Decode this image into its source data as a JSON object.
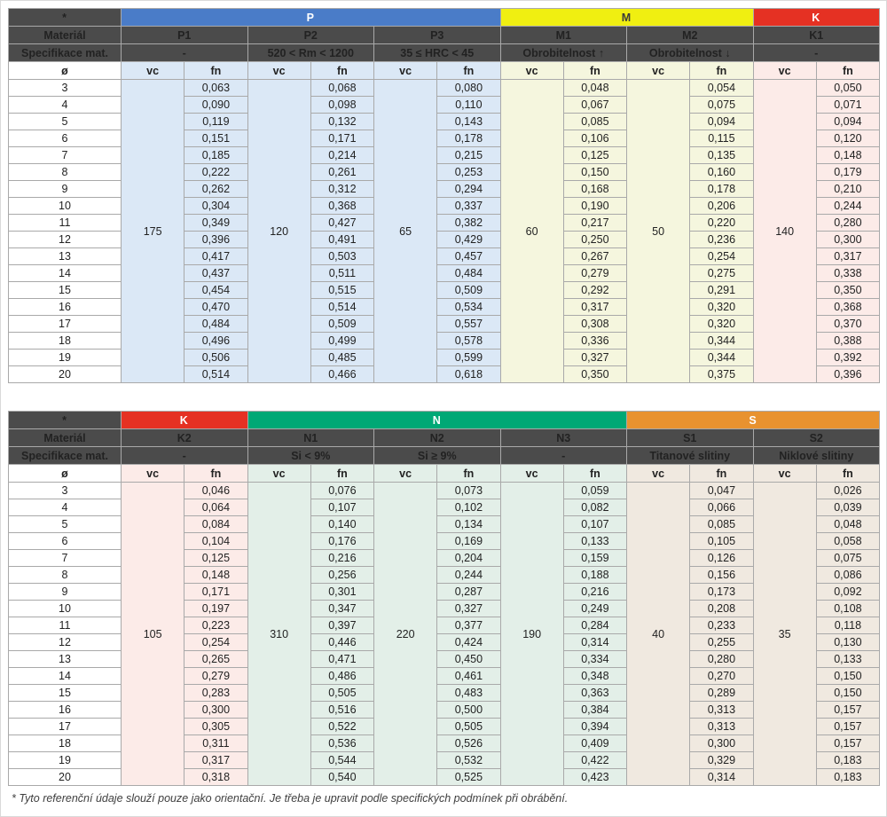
{
  "labels": {
    "corner": "*",
    "material_row": "Materiál",
    "spec_row": "Specifikace mat.",
    "diameter": "ø",
    "vc": "vc",
    "fn": "fn"
  },
  "colors": {
    "header_dark": "#4b4b4b",
    "border_inner": "#a9a9a9",
    "border_outer": "#6f6f6f",
    "p_blue": "#4a7cc8",
    "m_yellow": "#f0ef11",
    "k_red": "#e53123",
    "n_green": "#00a875",
    "s_orange": "#e8922f"
  },
  "diameters": [
    "3",
    "4",
    "5",
    "6",
    "7",
    "8",
    "9",
    "10",
    "11",
    "12",
    "13",
    "14",
    "15",
    "16",
    "17",
    "18",
    "19",
    "20"
  ],
  "tables": [
    {
      "name": "cutting-data-table-p-m-k",
      "groups": [
        {
          "label": "P",
          "color": "#4a7cc8",
          "text_color": "#ffffff",
          "tint": "#dbe8f6",
          "materials": [
            {
              "name": "P1",
              "spec": "-",
              "vc": "175",
              "fn": [
                "0,063",
                "0,090",
                "0,119",
                "0,151",
                "0,185",
                "0,222",
                "0,262",
                "0,304",
                "0,349",
                "0,396",
                "0,417",
                "0,437",
                "0,454",
                "0,470",
                "0,484",
                "0,496",
                "0,506",
                "0,514"
              ]
            },
            {
              "name": "P2",
              "spec": "520 < Rm < 1200",
              "vc": "120",
              "fn": [
                "0,068",
                "0,098",
                "0,132",
                "0,171",
                "0,214",
                "0,261",
                "0,312",
                "0,368",
                "0,427",
                "0,491",
                "0,503",
                "0,511",
                "0,515",
                "0,514",
                "0,509",
                "0,499",
                "0,485",
                "0,466"
              ]
            },
            {
              "name": "P3",
              "spec": "35 ≤ HRC < 45",
              "vc": "65",
              "fn": [
                "0,080",
                "0,110",
                "0,143",
                "0,178",
                "0,215",
                "0,253",
                "0,294",
                "0,337",
                "0,382",
                "0,429",
                "0,457",
                "0,484",
                "0,509",
                "0,534",
                "0,557",
                "0,578",
                "0,599",
                "0,618"
              ]
            }
          ]
        },
        {
          "label": "M",
          "color": "#f0ef11",
          "text_color": "#3b3b3b",
          "tint": "#f5f6de",
          "materials": [
            {
              "name": "M1",
              "spec": "Obrobitelnost ↑",
              "vc": "60",
              "fn": [
                "0,048",
                "0,067",
                "0,085",
                "0,106",
                "0,125",
                "0,150",
                "0,168",
                "0,190",
                "0,217",
                "0,250",
                "0,267",
                "0,279",
                "0,292",
                "0,317",
                "0,308",
                "0,336",
                "0,327",
                "0,350"
              ]
            },
            {
              "name": "M2",
              "spec": "Obrobitelnost ↓",
              "vc": "50",
              "fn": [
                "0,054",
                "0,075",
                "0,094",
                "0,115",
                "0,135",
                "0,160",
                "0,178",
                "0,206",
                "0,220",
                "0,236",
                "0,254",
                "0,275",
                "0,291",
                "0,320",
                "0,320",
                "0,344",
                "0,344",
                "0,375"
              ]
            }
          ]
        },
        {
          "label": "K",
          "color": "#e53123",
          "text_color": "#ffffff",
          "tint": "#fcebe8",
          "materials": [
            {
              "name": "K1",
              "spec": "-",
              "vc": "140",
              "fn": [
                "0,050",
                "0,071",
                "0,094",
                "0,120",
                "0,148",
                "0,179",
                "0,210",
                "0,244",
                "0,280",
                "0,300",
                "0,317",
                "0,338",
                "0,350",
                "0,368",
                "0,370",
                "0,388",
                "0,392",
                "0,396"
              ]
            }
          ]
        }
      ]
    },
    {
      "name": "cutting-data-table-k-n-s",
      "groups": [
        {
          "label": "K",
          "color": "#e53123",
          "text_color": "#ffffff",
          "tint": "#fcebe8",
          "materials": [
            {
              "name": "K2",
              "spec": "-",
              "vc": "105",
              "fn": [
                "0,046",
                "0,064",
                "0,084",
                "0,104",
                "0,125",
                "0,148",
                "0,171",
                "0,197",
                "0,223",
                "0,254",
                "0,265",
                "0,279",
                "0,283",
                "0,300",
                "0,305",
                "0,311",
                "0,317",
                "0,318"
              ]
            }
          ]
        },
        {
          "label": "N",
          "color": "#00a875",
          "text_color": "#ffffff",
          "tint": "#e3efe8",
          "materials": [
            {
              "name": "N1",
              "spec": "Si < 9%",
              "vc": "310",
              "fn": [
                "0,076",
                "0,107",
                "0,140",
                "0,176",
                "0,216",
                "0,256",
                "0,301",
                "0,347",
                "0,397",
                "0,446",
                "0,471",
                "0,486",
                "0,505",
                "0,516",
                "0,522",
                "0,536",
                "0,544",
                "0,540"
              ]
            },
            {
              "name": "N2",
              "spec": "Si ≥ 9%",
              "vc": "220",
              "fn": [
                "0,073",
                "0,102",
                "0,134",
                "0,169",
                "0,204",
                "0,244",
                "0,287",
                "0,327",
                "0,377",
                "0,424",
                "0,450",
                "0,461",
                "0,483",
                "0,500",
                "0,505",
                "0,526",
                "0,532",
                "0,525"
              ]
            },
            {
              "name": "N3",
              "spec": "-",
              "vc": "190",
              "fn": [
                "0,059",
                "0,082",
                "0,107",
                "0,133",
                "0,159",
                "0,188",
                "0,216",
                "0,249",
                "0,284",
                "0,314",
                "0,334",
                "0,348",
                "0,363",
                "0,384",
                "0,394",
                "0,409",
                "0,422",
                "0,423"
              ]
            }
          ]
        },
        {
          "label": "S",
          "color": "#e8922f",
          "text_color": "#ffffff",
          "tint": "#f0e9e0",
          "materials": [
            {
              "name": "S1",
              "spec": "Titanové slitiny",
              "vc": "40",
              "fn": [
                "0,047",
                "0,066",
                "0,085",
                "0,105",
                "0,126",
                "0,156",
                "0,173",
                "0,208",
                "0,233",
                "0,255",
                "0,280",
                "0,270",
                "0,289",
                "0,313",
                "0,313",
                "0,300",
                "0,329",
                "0,314"
              ]
            },
            {
              "name": "S2",
              "spec": "Niklové slitiny",
              "vc": "35",
              "fn": [
                "0,026",
                "0,039",
                "0,048",
                "0,058",
                "0,075",
                "0,086",
                "0,092",
                "0,108",
                "0,118",
                "0,130",
                "0,133",
                "0,150",
                "0,150",
                "0,157",
                "0,157",
                "0,157",
                "0,183",
                "0,183"
              ]
            }
          ]
        }
      ]
    }
  ],
  "footnote": "* Tyto referenční údaje slouží pouze jako orientační. Je třeba je upravit podle specifických podmínek při obrábění."
}
